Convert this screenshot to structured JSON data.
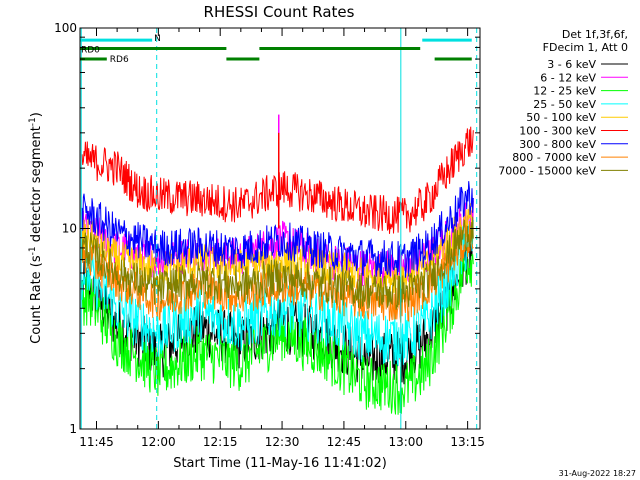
{
  "chart_data": {
    "type": "line",
    "title": "RHESSI Count Rates",
    "xlabel": "Start Time (11-May-16 11:41:02)",
    "ylabel_main": "Count Rate (s",
    "ylabel_sup1": "-1",
    "ylabel_mid": " detector segment",
    "ylabel_sup2": "-1",
    "ylabel_end": ")",
    "y_scale": "log",
    "ylim": [
      1,
      100
    ],
    "xlim": [
      "11:41",
      "13:18"
    ],
    "x_ticks": [
      "11:45",
      "12:00",
      "12:15",
      "12:30",
      "12:45",
      "13:00",
      "13:15"
    ],
    "x_tick_minutes": [
      45,
      60,
      75,
      90,
      105,
      120,
      135
    ],
    "x_start_minute": 41,
    "x_end_minute": 138,
    "y_tick_labels": [
      "1",
      "10",
      "100"
    ],
    "legend_header": [
      "Det 1f,3f,6f,",
      "FDecim 1, Att 0"
    ],
    "series": [
      {
        "name": "3 - 6 keV",
        "color": "#000000",
        "x": [
          43,
          50,
          60,
          70,
          80,
          90,
          100,
          110,
          120,
          125,
          130,
          135
        ],
        "y": [
          5.0,
          3.3,
          2.4,
          3.2,
          2.7,
          3.3,
          2.9,
          2.2,
          2.3,
          2.8,
          4.2,
          7.5
        ]
      },
      {
        "name": "6 - 12 keV",
        "color": "#ff00ff",
        "x": [
          43,
          50,
          60,
          70,
          80,
          90,
          100,
          110,
          120,
          125,
          130,
          135
        ],
        "y": [
          10.0,
          8.0,
          7.0,
          7.6,
          7.2,
          8.8,
          7.0,
          6.4,
          6.3,
          7.0,
          9.0,
          11.5
        ]
      },
      {
        "name": "12 - 25 keV",
        "color": "#00ff00",
        "x": [
          43,
          50,
          60,
          70,
          80,
          90,
          100,
          110,
          120,
          125,
          130,
          135
        ],
        "y": [
          4.5,
          2.8,
          1.9,
          2.4,
          2.1,
          3.0,
          2.4,
          1.7,
          1.6,
          2.0,
          3.6,
          7.0
        ]
      },
      {
        "name": "25 - 50 keV",
        "color": "#00ffff",
        "x": [
          43,
          50,
          60,
          70,
          80,
          90,
          100,
          110,
          120,
          125,
          130,
          135
        ],
        "y": [
          6.0,
          4.0,
          3.0,
          3.8,
          3.3,
          4.0,
          3.6,
          2.9,
          2.8,
          3.4,
          5.2,
          8.5
        ]
      },
      {
        "name": "50 - 100 keV",
        "color": "#ffcc00",
        "x": [
          43,
          50,
          60,
          70,
          80,
          90,
          100,
          110,
          120,
          125,
          130,
          135
        ],
        "y": [
          9.0,
          7.0,
          6.2,
          6.8,
          6.4,
          7.0,
          6.3,
          5.9,
          5.8,
          6.4,
          8.5,
          11.0
        ]
      },
      {
        "name": "100 - 300 keV",
        "color": "#ff0000",
        "x": [
          43,
          50,
          55,
          60,
          70,
          80,
          90,
          100,
          110,
          120,
          125,
          130,
          135
        ],
        "y": [
          22.0,
          20.0,
          15.5,
          14.5,
          14.0,
          13.0,
          16.0,
          14.0,
          12.0,
          11.5,
          13.5,
          19.0,
          27.0
        ]
      },
      {
        "name": "300 - 800 keV",
        "color": "#0000ff",
        "x": [
          43,
          50,
          60,
          70,
          80,
          90,
          100,
          110,
          120,
          125,
          130,
          135
        ],
        "y": [
          12.0,
          9.5,
          8.0,
          8.2,
          7.8,
          8.8,
          7.8,
          7.2,
          7.0,
          8.0,
          10.5,
          14.5
        ]
      },
      {
        "name": "800 - 7000 keV",
        "color": "#ff8000",
        "x": [
          43,
          50,
          60,
          70,
          80,
          90,
          100,
          110,
          120,
          125,
          130,
          135
        ],
        "y": [
          7.0,
          5.5,
          4.3,
          5.0,
          4.6,
          5.2,
          4.8,
          4.3,
          4.2,
          5.0,
          6.5,
          9.0
        ]
      },
      {
        "name": "7000 - 15000 keV",
        "color": "#808000",
        "x": [
          43,
          50,
          60,
          70,
          80,
          90,
          100,
          110,
          120,
          125,
          130,
          135
        ],
        "y": [
          8.0,
          6.0,
          5.0,
          5.6,
          5.2,
          5.8,
          5.3,
          4.9,
          4.8,
          5.4,
          7.2,
          9.8
        ]
      }
    ],
    "spikes": [
      {
        "x": 89.2,
        "y": 37.0,
        "color": "#ff00ff"
      },
      {
        "x": 89.2,
        "y": 30.0,
        "color": "#ff0000"
      }
    ],
    "flag_bars": [
      {
        "label": "N",
        "color": "#00e0e0",
        "y_data": 87,
        "segments": [
          [
            41,
            58.5
          ],
          [
            124,
            136
          ]
        ]
      },
      {
        "label": "RD0",
        "color": "#008000",
        "y_data": 79,
        "segments": [
          [
            41,
            76.5
          ],
          [
            84.5,
            123.5
          ]
        ]
      },
      {
        "label": "RD6",
        "color": "#008000",
        "y_data": 70,
        "segments": [
          [
            41,
            47.5
          ],
          [
            76.5,
            84.5
          ],
          [
            127,
            136
          ]
        ]
      }
    ],
    "vlines": [
      {
        "x": 41.3,
        "style": "solid"
      },
      {
        "x": 59.6,
        "style": "dashed"
      },
      {
        "x": 118.8,
        "style": "solid"
      },
      {
        "x": 137.2,
        "style": "dashed"
      }
    ],
    "timestamp": "31-Aug-2022 18:27",
    "grid": false,
    "legend_position": "right"
  }
}
